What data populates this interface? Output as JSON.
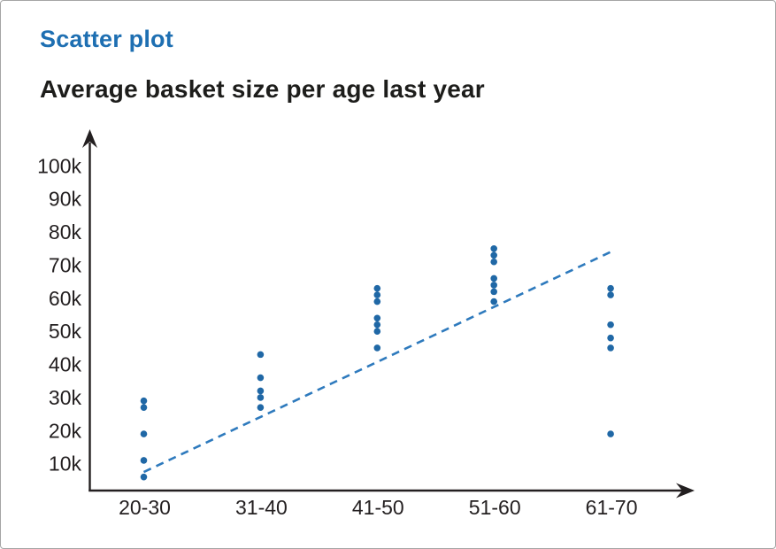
{
  "page": {
    "title": "Scatter plot",
    "subtitle": "Average basket size per age last year"
  },
  "chart_data": {
    "type": "scatter",
    "title": "Scatter plot",
    "subtitle": "Average basket size per age last year",
    "unit": "thousands (k)",
    "x_categories": [
      "20-30",
      "31-40",
      "41-50",
      "51-60",
      "61-70"
    ],
    "y_ticks": [
      {
        "label": "10k",
        "value": 10
      },
      {
        "label": "20k",
        "value": 20
      },
      {
        "label": "30k",
        "value": 30
      },
      {
        "label": "40k",
        "value": 40
      },
      {
        "label": "50k",
        "value": 50
      },
      {
        "label": "60k",
        "value": 60
      },
      {
        "label": "70k",
        "value": 70
      },
      {
        "label": "80k",
        "value": 80
      },
      {
        "label": "90k",
        "value": 90
      },
      {
        "label": "100k",
        "value": 100
      }
    ],
    "groups": [
      {
        "category": "20-30",
        "values": [
          29,
          27,
          19,
          11,
          6
        ]
      },
      {
        "category": "31-40",
        "values": [
          43,
          36,
          32,
          30,
          27
        ]
      },
      {
        "category": "41-50",
        "values": [
          63,
          61,
          59,
          54,
          52,
          50,
          45
        ]
      },
      {
        "category": "51-60",
        "values": [
          75,
          73,
          71,
          66,
          64,
          62,
          59
        ]
      },
      {
        "category": "61-70",
        "values": [
          63,
          61,
          52,
          48,
          45,
          19
        ]
      }
    ],
    "trendline": {
      "style": "dashed",
      "from": {
        "category": "20-30",
        "value": 7.5
      },
      "to": {
        "category": "61-70",
        "value": 74
      }
    },
    "axes": {
      "y_range_labeled": [
        10,
        100
      ],
      "gridlines": false,
      "legend": "none"
    },
    "colors": {
      "title_blue": "#1e6fb2",
      "dot": "#2068a6",
      "trend": "#2e7abd",
      "axis": "#231f20",
      "text": "#231f20",
      "border": "#a5a5a5"
    }
  }
}
